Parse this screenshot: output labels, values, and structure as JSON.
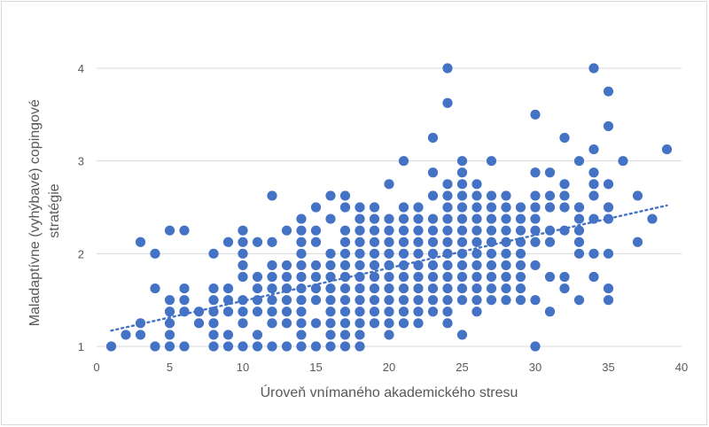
{
  "chart_data": {
    "type": "scatter",
    "title": "",
    "xlabel": "Úroveň vnímaného akademického stresu",
    "ylabel_lines": [
      "Maladaptívne (vyhýbavé) copingové",
      "stratégie"
    ],
    "xlim": [
      0,
      40
    ],
    "ylim": [
      1,
      4
    ],
    "x_ticks": [
      "0",
      "5",
      "10",
      "15",
      "20",
      "25",
      "30",
      "35",
      "40"
    ],
    "y_ticks": [
      "1",
      "2",
      "3",
      "4"
    ],
    "grid": "horizontal",
    "legend": "none",
    "marker_color": "#4472c4",
    "trendline": {
      "type": "linear",
      "style": "dotted",
      "color": "#4472c4",
      "x": [
        1,
        39
      ],
      "y": [
        1.17,
        2.52
      ]
    },
    "points": [
      [
        1,
        1
      ],
      [
        2,
        1.125
      ],
      [
        3,
        1.125
      ],
      [
        3,
        1.25
      ],
      [
        3,
        2.125
      ],
      [
        4,
        1
      ],
      [
        4,
        1.625
      ],
      [
        4,
        2
      ],
      [
        5,
        1
      ],
      [
        5,
        1.125
      ],
      [
        5,
        1.25
      ],
      [
        5,
        1.375
      ],
      [
        5,
        1.5
      ],
      [
        5,
        2.25
      ],
      [
        6,
        1
      ],
      [
        6,
        1.375
      ],
      [
        6,
        1.5
      ],
      [
        6,
        1.625
      ],
      [
        6,
        2.25
      ],
      [
        7,
        1.25
      ],
      [
        7,
        1.375
      ],
      [
        8,
        1
      ],
      [
        8,
        1.125
      ],
      [
        8,
        1.25
      ],
      [
        8,
        1.375
      ],
      [
        8,
        1.5
      ],
      [
        8,
        1.625
      ],
      [
        8,
        2
      ],
      [
        9,
        1
      ],
      [
        9,
        1.125
      ],
      [
        9,
        1.375
      ],
      [
        9,
        1.5
      ],
      [
        9,
        1.625
      ],
      [
        9,
        2.125
      ],
      [
        10,
        1
      ],
      [
        10,
        1.25
      ],
      [
        10,
        1.375
      ],
      [
        10,
        1.5
      ],
      [
        10,
        1.75
      ],
      [
        10,
        1.875
      ],
      [
        10,
        2
      ],
      [
        10,
        2.125
      ],
      [
        10,
        2.25
      ],
      [
        11,
        1
      ],
      [
        11,
        1.125
      ],
      [
        11,
        1.375
      ],
      [
        11,
        1.5
      ],
      [
        11,
        1.625
      ],
      [
        11,
        1.75
      ],
      [
        11,
        2.125
      ],
      [
        12,
        1
      ],
      [
        12,
        1.25
      ],
      [
        12,
        1.375
      ],
      [
        12,
        1.5
      ],
      [
        12,
        1.625
      ],
      [
        12,
        1.75
      ],
      [
        12,
        1.875
      ],
      [
        12,
        2.125
      ],
      [
        12,
        2.625
      ],
      [
        13,
        1
      ],
      [
        13,
        1.25
      ],
      [
        13,
        1.375
      ],
      [
        13,
        1.5
      ],
      [
        13,
        1.625
      ],
      [
        13,
        1.75
      ],
      [
        13,
        1.875
      ],
      [
        13,
        2.25
      ],
      [
        14,
        1
      ],
      [
        14,
        1.125
      ],
      [
        14,
        1.25
      ],
      [
        14,
        1.375
      ],
      [
        14,
        1.5
      ],
      [
        14,
        1.625
      ],
      [
        14,
        1.75
      ],
      [
        14,
        1.875
      ],
      [
        14,
        2
      ],
      [
        14,
        2.125
      ],
      [
        14,
        2.25
      ],
      [
        14,
        2.375
      ],
      [
        15,
        1
      ],
      [
        15,
        1.25
      ],
      [
        15,
        1.5
      ],
      [
        15,
        1.625
      ],
      [
        15,
        1.75
      ],
      [
        15,
        1.875
      ],
      [
        15,
        2.125
      ],
      [
        15,
        2.25
      ],
      [
        15,
        2.5
      ],
      [
        16,
        1
      ],
      [
        16,
        1.125
      ],
      [
        16,
        1.25
      ],
      [
        16,
        1.375
      ],
      [
        16,
        1.5
      ],
      [
        16,
        1.625
      ],
      [
        16,
        1.75
      ],
      [
        16,
        1.875
      ],
      [
        16,
        2
      ],
      [
        16,
        2.375
      ],
      [
        16,
        2.625
      ],
      [
        17,
        1
      ],
      [
        17,
        1.125
      ],
      [
        17,
        1.25
      ],
      [
        17,
        1.375
      ],
      [
        17,
        1.5
      ],
      [
        17,
        1.625
      ],
      [
        17,
        1.75
      ],
      [
        17,
        1.875
      ],
      [
        17,
        2
      ],
      [
        17,
        2.125
      ],
      [
        17,
        2.25
      ],
      [
        17,
        2.5
      ],
      [
        17,
        2.625
      ],
      [
        18,
        1
      ],
      [
        18,
        1.125
      ],
      [
        18,
        1.25
      ],
      [
        18,
        1.375
      ],
      [
        18,
        1.5
      ],
      [
        18,
        1.625
      ],
      [
        18,
        1.75
      ],
      [
        18,
        1.875
      ],
      [
        18,
        2
      ],
      [
        18,
        2.125
      ],
      [
        18,
        2.25
      ],
      [
        18,
        2.375
      ],
      [
        18,
        2.5
      ],
      [
        19,
        1.25
      ],
      [
        19,
        1.375
      ],
      [
        19,
        1.5
      ],
      [
        19,
        1.625
      ],
      [
        19,
        1.75
      ],
      [
        19,
        1.875
      ],
      [
        19,
        2
      ],
      [
        19,
        2.125
      ],
      [
        19,
        2.25
      ],
      [
        19,
        2.375
      ],
      [
        19,
        2.5
      ],
      [
        20,
        1.125
      ],
      [
        20,
        1.25
      ],
      [
        20,
        1.375
      ],
      [
        20,
        1.5
      ],
      [
        20,
        1.625
      ],
      [
        20,
        1.75
      ],
      [
        20,
        1.875
      ],
      [
        20,
        2
      ],
      [
        20,
        2.125
      ],
      [
        20,
        2.25
      ],
      [
        20,
        2.375
      ],
      [
        20,
        2.75
      ],
      [
        21,
        1.25
      ],
      [
        21,
        1.375
      ],
      [
        21,
        1.5
      ],
      [
        21,
        1.625
      ],
      [
        21,
        1.75
      ],
      [
        21,
        1.875
      ],
      [
        21,
        2
      ],
      [
        21,
        2.125
      ],
      [
        21,
        2.25
      ],
      [
        21,
        2.375
      ],
      [
        21,
        2.5
      ],
      [
        21,
        3
      ],
      [
        22,
        1.25
      ],
      [
        22,
        1.375
      ],
      [
        22,
        1.5
      ],
      [
        22,
        1.625
      ],
      [
        22,
        1.75
      ],
      [
        22,
        1.875
      ],
      [
        22,
        2
      ],
      [
        22,
        2.125
      ],
      [
        22,
        2.25
      ],
      [
        22,
        2.375
      ],
      [
        22,
        2.5
      ],
      [
        23,
        1.375
      ],
      [
        23,
        1.5
      ],
      [
        23,
        1.625
      ],
      [
        23,
        1.75
      ],
      [
        23,
        1.875
      ],
      [
        23,
        2
      ],
      [
        23,
        2.125
      ],
      [
        23,
        2.25
      ],
      [
        23,
        2.375
      ],
      [
        23,
        2.625
      ],
      [
        23,
        2.875
      ],
      [
        23,
        3.25
      ],
      [
        24,
        1.25
      ],
      [
        24,
        1.375
      ],
      [
        24,
        1.5
      ],
      [
        24,
        1.625
      ],
      [
        24,
        1.75
      ],
      [
        24,
        1.875
      ],
      [
        24,
        2
      ],
      [
        24,
        2.125
      ],
      [
        24,
        2.25
      ],
      [
        24,
        2.375
      ],
      [
        24,
        2.5
      ],
      [
        24,
        2.625
      ],
      [
        24,
        2.75
      ],
      [
        24,
        3.625
      ],
      [
        24,
        4
      ],
      [
        25,
        1.125
      ],
      [
        25,
        1.5
      ],
      [
        25,
        1.625
      ],
      [
        25,
        1.75
      ],
      [
        25,
        1.875
      ],
      [
        25,
        2
      ],
      [
        25,
        2.125
      ],
      [
        25,
        2.25
      ],
      [
        25,
        2.375
      ],
      [
        25,
        2.5
      ],
      [
        25,
        2.625
      ],
      [
        25,
        2.75
      ],
      [
        25,
        2.875
      ],
      [
        25,
        3
      ],
      [
        26,
        1.375
      ],
      [
        26,
        1.5
      ],
      [
        26,
        1.625
      ],
      [
        26,
        1.75
      ],
      [
        26,
        1.875
      ],
      [
        26,
        2
      ],
      [
        26,
        2.125
      ],
      [
        26,
        2.25
      ],
      [
        26,
        2.375
      ],
      [
        26,
        2.5
      ],
      [
        26,
        2.625
      ],
      [
        26,
        2.75
      ],
      [
        27,
        1.5
      ],
      [
        27,
        1.625
      ],
      [
        27,
        1.75
      ],
      [
        27,
        1.875
      ],
      [
        27,
        2
      ],
      [
        27,
        2.125
      ],
      [
        27,
        2.25
      ],
      [
        27,
        2.375
      ],
      [
        27,
        2.5
      ],
      [
        27,
        2.625
      ],
      [
        27,
        3
      ],
      [
        28,
        1.5
      ],
      [
        28,
        1.625
      ],
      [
        28,
        1.75
      ],
      [
        28,
        1.875
      ],
      [
        28,
        2
      ],
      [
        28,
        2.125
      ],
      [
        28,
        2.25
      ],
      [
        28,
        2.375
      ],
      [
        28,
        2.5
      ],
      [
        28,
        2.625
      ],
      [
        29,
        1.5
      ],
      [
        29,
        1.625
      ],
      [
        29,
        1.75
      ],
      [
        29,
        1.875
      ],
      [
        29,
        2
      ],
      [
        29,
        2.125
      ],
      [
        29,
        2.25
      ],
      [
        29,
        2.375
      ],
      [
        29,
        2.5
      ],
      [
        30,
        1
      ],
      [
        30,
        1.5
      ],
      [
        30,
        1.875
      ],
      [
        30,
        2.125
      ],
      [
        30,
        2.25
      ],
      [
        30,
        2.375
      ],
      [
        30,
        2.5
      ],
      [
        30,
        2.625
      ],
      [
        30,
        2.875
      ],
      [
        30,
        3.5
      ],
      [
        31,
        1.375
      ],
      [
        31,
        1.75
      ],
      [
        31,
        2.125
      ],
      [
        31,
        2.25
      ],
      [
        31,
        2.5
      ],
      [
        31,
        2.625
      ],
      [
        31,
        2.875
      ],
      [
        32,
        1.625
      ],
      [
        32,
        1.75
      ],
      [
        32,
        2.25
      ],
      [
        32,
        2.5
      ],
      [
        32,
        2.625
      ],
      [
        32,
        2.75
      ],
      [
        32,
        3.25
      ],
      [
        33,
        1.5
      ],
      [
        33,
        2
      ],
      [
        33,
        2.125
      ],
      [
        33,
        2.25
      ],
      [
        33,
        2.375
      ],
      [
        33,
        2.5
      ],
      [
        33,
        3
      ],
      [
        34,
        1.75
      ],
      [
        34,
        2
      ],
      [
        34,
        2.375
      ],
      [
        34,
        2.625
      ],
      [
        34,
        2.75
      ],
      [
        34,
        2.875
      ],
      [
        34,
        3.125
      ],
      [
        34,
        4
      ],
      [
        35,
        1.5
      ],
      [
        35,
        1.625
      ],
      [
        35,
        2
      ],
      [
        35,
        2.375
      ],
      [
        35,
        2.5
      ],
      [
        35,
        2.75
      ],
      [
        35,
        3.375
      ],
      [
        35,
        3.75
      ],
      [
        36,
        3
      ],
      [
        37,
        2.125
      ],
      [
        37,
        2.625
      ],
      [
        38,
        2.375
      ],
      [
        39,
        3.125
      ]
    ]
  }
}
